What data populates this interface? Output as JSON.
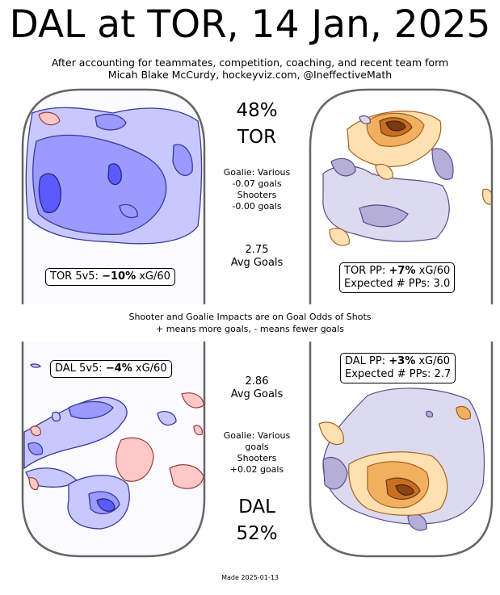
{
  "header": {
    "title": "DAL at TOR, 14 Jan, 2025",
    "subtitle_line1": "After accounting for teammates, competition, coaching, and recent team form",
    "subtitle_line2": "Micah Blake McCurdy, hockeyviz.com, @IneffectiveMath"
  },
  "home": {
    "team": "TOR",
    "win_pct": "48%",
    "goalie_line": "Goalie: Various",
    "goalie_goals": "-0.07 goals",
    "shooters_label": "Shooters",
    "shooters_goals": "-0.00 goals",
    "avg_goals_value": "2.75",
    "avg_goals_label": "Avg Goals",
    "ev_prefix": "TOR 5v5: ",
    "ev_value": "−10%",
    "ev_suffix": " xG/60",
    "pp_prefix": "TOR PP: ",
    "pp_value": "+7%",
    "pp_suffix": " xG/60",
    "pp_expected": "Expected # PPs: 3.0"
  },
  "away": {
    "team": "DAL",
    "win_pct": "52%",
    "goalie_line": "Goalie: Various",
    "goalie_goals": "goals",
    "shooters_label": "Shooters",
    "shooters_goals": "+0.02 goals",
    "avg_goals_value": "2.86",
    "avg_goals_label": "Avg Goals",
    "ev_prefix": "DAL 5v5: ",
    "ev_value": "−4%",
    "ev_suffix": " xG/60",
    "pp_prefix": "DAL PP: ",
    "pp_value": "+3%",
    "pp_suffix": " xG/60",
    "pp_expected": "Expected # PPs: 2.7"
  },
  "note": {
    "line1": "Shooter and Goalie Impacts are on Goal Odds of Shots",
    "line2": "+ means more goals, - means fewer goals"
  },
  "footer": {
    "made": "Made 2025-01-13"
  },
  "chart_data": {
    "type": "heatmap",
    "panels": [
      {
        "name": "TOR 5v5",
        "value": "−10% xG/60",
        "colors": {
          "below": "#5555ff",
          "above": "#ff7777"
        }
      },
      {
        "name": "TOR PP",
        "value": "+7% xG/60",
        "colors": {
          "below": "#9c8fc4",
          "above": "#f0a030",
          "strong": "#8b4513"
        }
      },
      {
        "name": "DAL 5v5",
        "value": "−4% xG/60",
        "colors": {
          "below": "#5555ff",
          "above": "#ff7777"
        }
      },
      {
        "name": "DAL PP",
        "value": "+3% xG/60",
        "colors": {
          "below": "#9c8fc4",
          "above": "#f0a030",
          "strong": "#8b4513"
        }
      }
    ]
  }
}
